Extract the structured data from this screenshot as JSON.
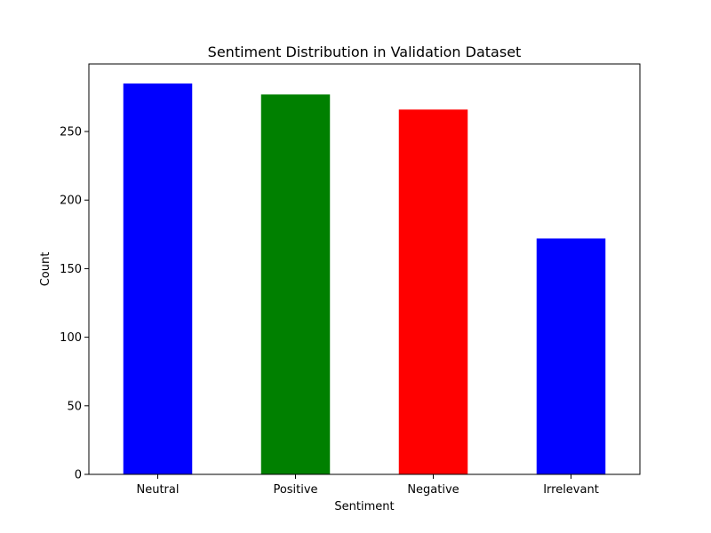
{
  "chart_data": {
    "type": "bar",
    "title": "Sentiment Distribution in Validation Dataset",
    "xlabel": "Sentiment",
    "ylabel": "Count",
    "categories": [
      "Neutral",
      "Positive",
      "Negative",
      "Irrelevant"
    ],
    "values": [
      285,
      277,
      266,
      172
    ],
    "colors": [
      "#0000ff",
      "#008000",
      "#ff0000",
      "#0000ff"
    ],
    "ylim": [
      0,
      299.25
    ],
    "yticks": [
      0,
      50,
      100,
      150,
      200,
      250
    ],
    "grid": false,
    "legend": "none"
  }
}
